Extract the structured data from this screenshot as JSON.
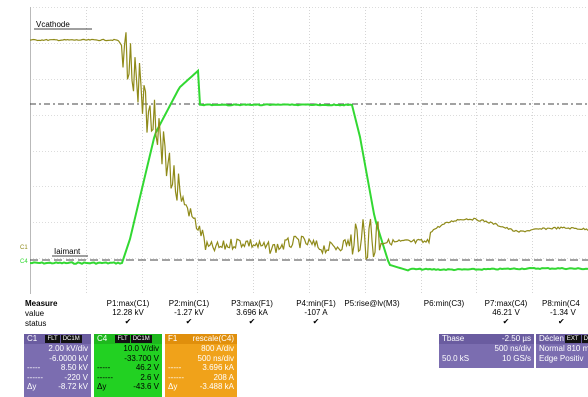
{
  "waveform": {
    "label_vcathode": "Vcathode",
    "label_iaimant": "Iaimant",
    "label_c1": "C1",
    "label_c4": "C4",
    "colors": {
      "trace_c1": "#8f8a19",
      "trace_c4": "#32d832",
      "grid": "#b9b9b9"
    }
  },
  "measure": {
    "title": "Measure",
    "row_value": "value",
    "row_status": "status",
    "columns": [
      {
        "name": "P1:max(C1)",
        "value": "12.28 kV",
        "status": "✔"
      },
      {
        "name": "P2:min(C1)",
        "value": "-1.27 kV",
        "status": "✔"
      },
      {
        "name": "P3:max(F1)",
        "value": "3.696 kA",
        "status": "✔"
      },
      {
        "name": "P4:min(F1)",
        "value": "-107 A",
        "status": "✔"
      },
      {
        "name": "P5:rise@lv(M3)",
        "value": "",
        "status": ""
      },
      {
        "name": "P6:min(C3)",
        "value": "",
        "status": ""
      },
      {
        "name": "P7:max(C4)",
        "value": "46.21 V",
        "status": "✔"
      },
      {
        "name": "P8:min(C4",
        "value": "-1.34 V",
        "status": "✔"
      }
    ]
  },
  "panels": {
    "c1": {
      "name": "C1",
      "tags": [
        "FLT",
        "DC1M"
      ],
      "rows": [
        "2.00 kV/div",
        "-6.0000 kV",
        "8.50 kV",
        "-220 V",
        "-8.72 kV"
      ],
      "color": "#7b6db0"
    },
    "c4": {
      "name": "C4",
      "tags": [
        "FLT",
        "DC1M"
      ],
      "rows": [
        "10.0 V/div",
        "-33.700 V",
        "46.2 V",
        "2.6 V",
        "-43.6 V"
      ],
      "color": "#22d122"
    },
    "f1": {
      "name": "F1",
      "title": "rescale(C4)",
      "rows": [
        "800 A/div",
        "500 ns/div",
        "3.696 kA",
        "208 A",
        "-3.488 kA"
      ],
      "color": "#f0a21a"
    },
    "tbase": {
      "name": "Tbase",
      "value": "-2.50 µs",
      "row1": "500 ns/div",
      "row2_left": "50.0 kS",
      "row2_right": "10 GS/s"
    },
    "trigger": {
      "name": "Déclen",
      "tag": "EXT",
      "tag2": "DC",
      "row1_left": "Normal",
      "row1_right": "810 m",
      "row2_left": "Edge",
      "row2_right": "Positiv"
    },
    "marker_labels": {
      "delta": "Δy"
    }
  }
}
